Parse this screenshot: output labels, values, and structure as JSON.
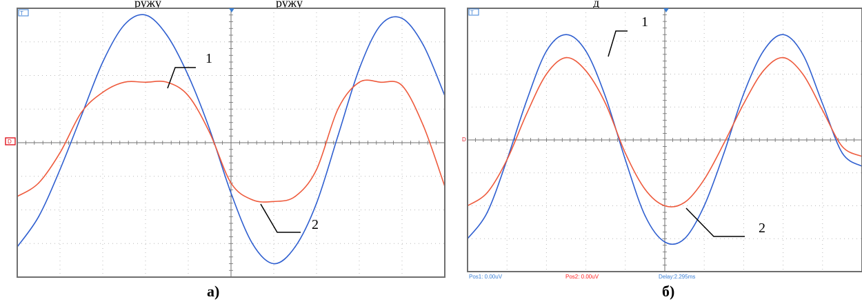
{
  "header_fragments": [
    "ружу",
    "ружу",
    "д"
  ],
  "panels": [
    {
      "caption": "а)",
      "callouts": [
        "1",
        "2"
      ],
      "footer": []
    },
    {
      "caption": "б)",
      "callouts": [
        "1",
        "2"
      ],
      "footer": [
        "Pos1:  0.00uV",
        "Pos2:  0.00uV",
        "Delay:2.295ms"
      ]
    }
  ],
  "colors": {
    "trace1": "#2f5fd0",
    "trace2": "#ee5a3c",
    "grid_frame": "#6e6e6e",
    "grid_dots": "#b8b8b8",
    "scope_blue": "#3a7fd5",
    "marker_red": "#e0202a",
    "footer_pos2": "#ff2020"
  },
  "chart_data": [
    {
      "type": "line",
      "title": "",
      "xlabel": "",
      "ylabel": "",
      "xlim": [
        0,
        10
      ],
      "ylim": [
        -4,
        4
      ],
      "grid": true,
      "series": [
        {
          "name": "1",
          "x": [
            0,
            0.5,
            1,
            1.5,
            2,
            2.5,
            3,
            3.5,
            4,
            4.5,
            5,
            5.5,
            6,
            6.5,
            7,
            7.5,
            8,
            8.5,
            9,
            9.5,
            10
          ],
          "values": [
            -3.1,
            -2.2,
            -0.8,
            0.8,
            2.4,
            3.5,
            3.8,
            3.2,
            2.0,
            0.4,
            -1.5,
            -3.0,
            -3.6,
            -3.1,
            -1.8,
            0.2,
            2.2,
            3.5,
            3.7,
            2.9,
            1.4
          ]
        },
        {
          "name": "2",
          "x": [
            0,
            0.5,
            1,
            1.5,
            2,
            2.5,
            3,
            3.5,
            4,
            4.5,
            5,
            5.5,
            6,
            6.5,
            7,
            7.5,
            8,
            8.5,
            9,
            9.5,
            10
          ],
          "values": [
            -1.6,
            -1.2,
            -0.3,
            0.9,
            1.5,
            1.8,
            1.8,
            1.8,
            1.4,
            0.3,
            -1.2,
            -1.7,
            -1.75,
            -1.6,
            -0.8,
            1.0,
            1.8,
            1.8,
            1.7,
            0.5,
            -1.3
          ]
        }
      ]
    },
    {
      "type": "line",
      "title": "",
      "xlabel": "",
      "ylabel": "",
      "xlim": [
        0,
        10
      ],
      "ylim": [
        -4,
        4
      ],
      "grid": true,
      "series": [
        {
          "name": "1",
          "x": [
            0,
            0.5,
            1,
            1.5,
            2,
            2.5,
            3,
            3.5,
            4,
            4.5,
            5,
            5.5,
            6,
            6.5,
            7,
            7.5,
            8,
            8.5,
            9,
            9.5,
            10
          ],
          "values": [
            -3.0,
            -2.2,
            -0.6,
            1.2,
            2.7,
            3.2,
            2.7,
            1.3,
            -0.6,
            -2.3,
            -3.1,
            -3.0,
            -2.0,
            -0.4,
            1.4,
            2.7,
            3.2,
            2.6,
            1.1,
            -0.4,
            -0.8
          ]
        },
        {
          "name": "2",
          "x": [
            0,
            0.5,
            1,
            1.5,
            2,
            2.5,
            3,
            3.5,
            4,
            4.5,
            5,
            5.5,
            6,
            6.5,
            7,
            7.5,
            8,
            8.5,
            9,
            9.5,
            10
          ],
          "values": [
            -2.0,
            -1.6,
            -0.6,
            0.8,
            2.0,
            2.5,
            2.1,
            1.1,
            -0.4,
            -1.5,
            -2.0,
            -1.9,
            -1.2,
            -0.1,
            1.1,
            2.1,
            2.5,
            2.0,
            0.9,
            -0.2,
            -0.5
          ]
        }
      ]
    }
  ]
}
